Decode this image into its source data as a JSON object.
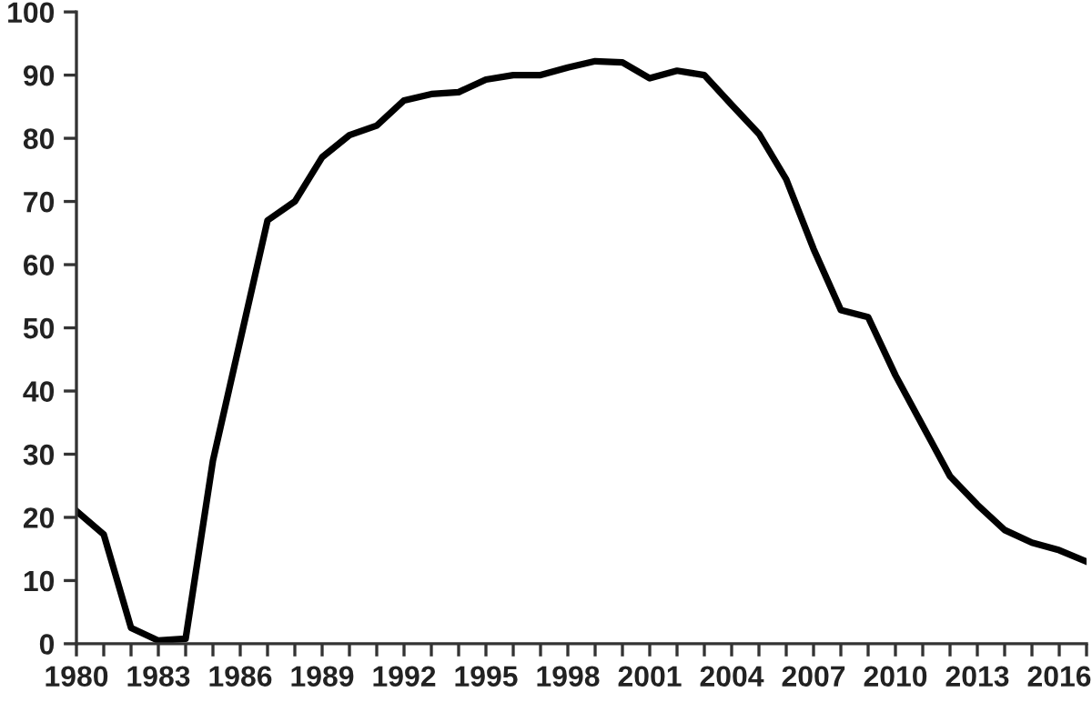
{
  "chart_data": {
    "type": "line",
    "x": [
      1980,
      1981,
      1982,
      1983,
      1984,
      1985,
      1986,
      1987,
      1988,
      1989,
      1990,
      1991,
      1992,
      1993,
      1994,
      1995,
      1996,
      1997,
      1998,
      1999,
      2000,
      2001,
      2002,
      2003,
      2004,
      2005,
      2006,
      2007,
      2008,
      2009,
      2010,
      2011,
      2012,
      2013,
      2014,
      2015,
      2016,
      2017
    ],
    "series": [
      {
        "color": "#000000",
        "values": [
          21,
          17.3,
          2.5,
          0.5,
          0.8,
          29,
          48,
          67,
          70,
          77,
          80.5,
          82,
          86,
          87,
          87.3,
          89.3,
          90,
          90,
          91.2,
          92.2,
          92,
          89.5,
          90.7,
          90,
          85.3,
          80.7,
          73.5,
          62.5,
          52.8,
          51.7,
          42.5,
          34.5,
          26.5,
          22,
          18,
          16,
          14.8,
          13
        ]
      }
    ],
    "xlim": [
      1980,
      2017
    ],
    "xticks": [
      1980,
      {
        "value": 1981,
        "label": null
      },
      {
        "value": 1982,
        "label": null
      },
      1983,
      {
        "value": 1984,
        "label": null
      },
      {
        "value": 1985,
        "label": null
      },
      1986,
      {
        "value": 1987,
        "label": null
      },
      {
        "value": 1988,
        "label": null
      },
      1989,
      {
        "value": 1990,
        "label": null
      },
      {
        "value": 1991,
        "label": null
      },
      1992,
      {
        "value": 1993,
        "label": null
      },
      {
        "value": 1994,
        "label": null
      },
      1995,
      {
        "value": 1996,
        "label": null
      },
      {
        "value": 1997,
        "label": null
      },
      1998,
      {
        "value": 1999,
        "label": null
      },
      {
        "value": 2000,
        "label": null
      },
      2001,
      {
        "value": 2002,
        "label": null
      },
      {
        "value": 2003,
        "label": null
      },
      2004,
      {
        "value": 2005,
        "label": null
      },
      {
        "value": 2006,
        "label": null
      },
      2007,
      {
        "value": 2008,
        "label": null
      },
      {
        "value": 2009,
        "label": null
      },
      2010,
      {
        "value": 2011,
        "label": null
      },
      {
        "value": 2012,
        "label": null
      },
      2013,
      {
        "value": 2014,
        "label": null
      },
      {
        "value": 2015,
        "label": null
      },
      2016,
      {
        "value": 2017,
        "label": null
      }
    ],
    "ylim": [
      0,
      100
    ],
    "yticks": [
      0,
      10,
      20,
      30,
      40,
      50,
      60,
      70,
      80,
      90,
      100
    ],
    "grid": false,
    "legend": false,
    "marker": "none",
    "line_style": "solid"
  }
}
